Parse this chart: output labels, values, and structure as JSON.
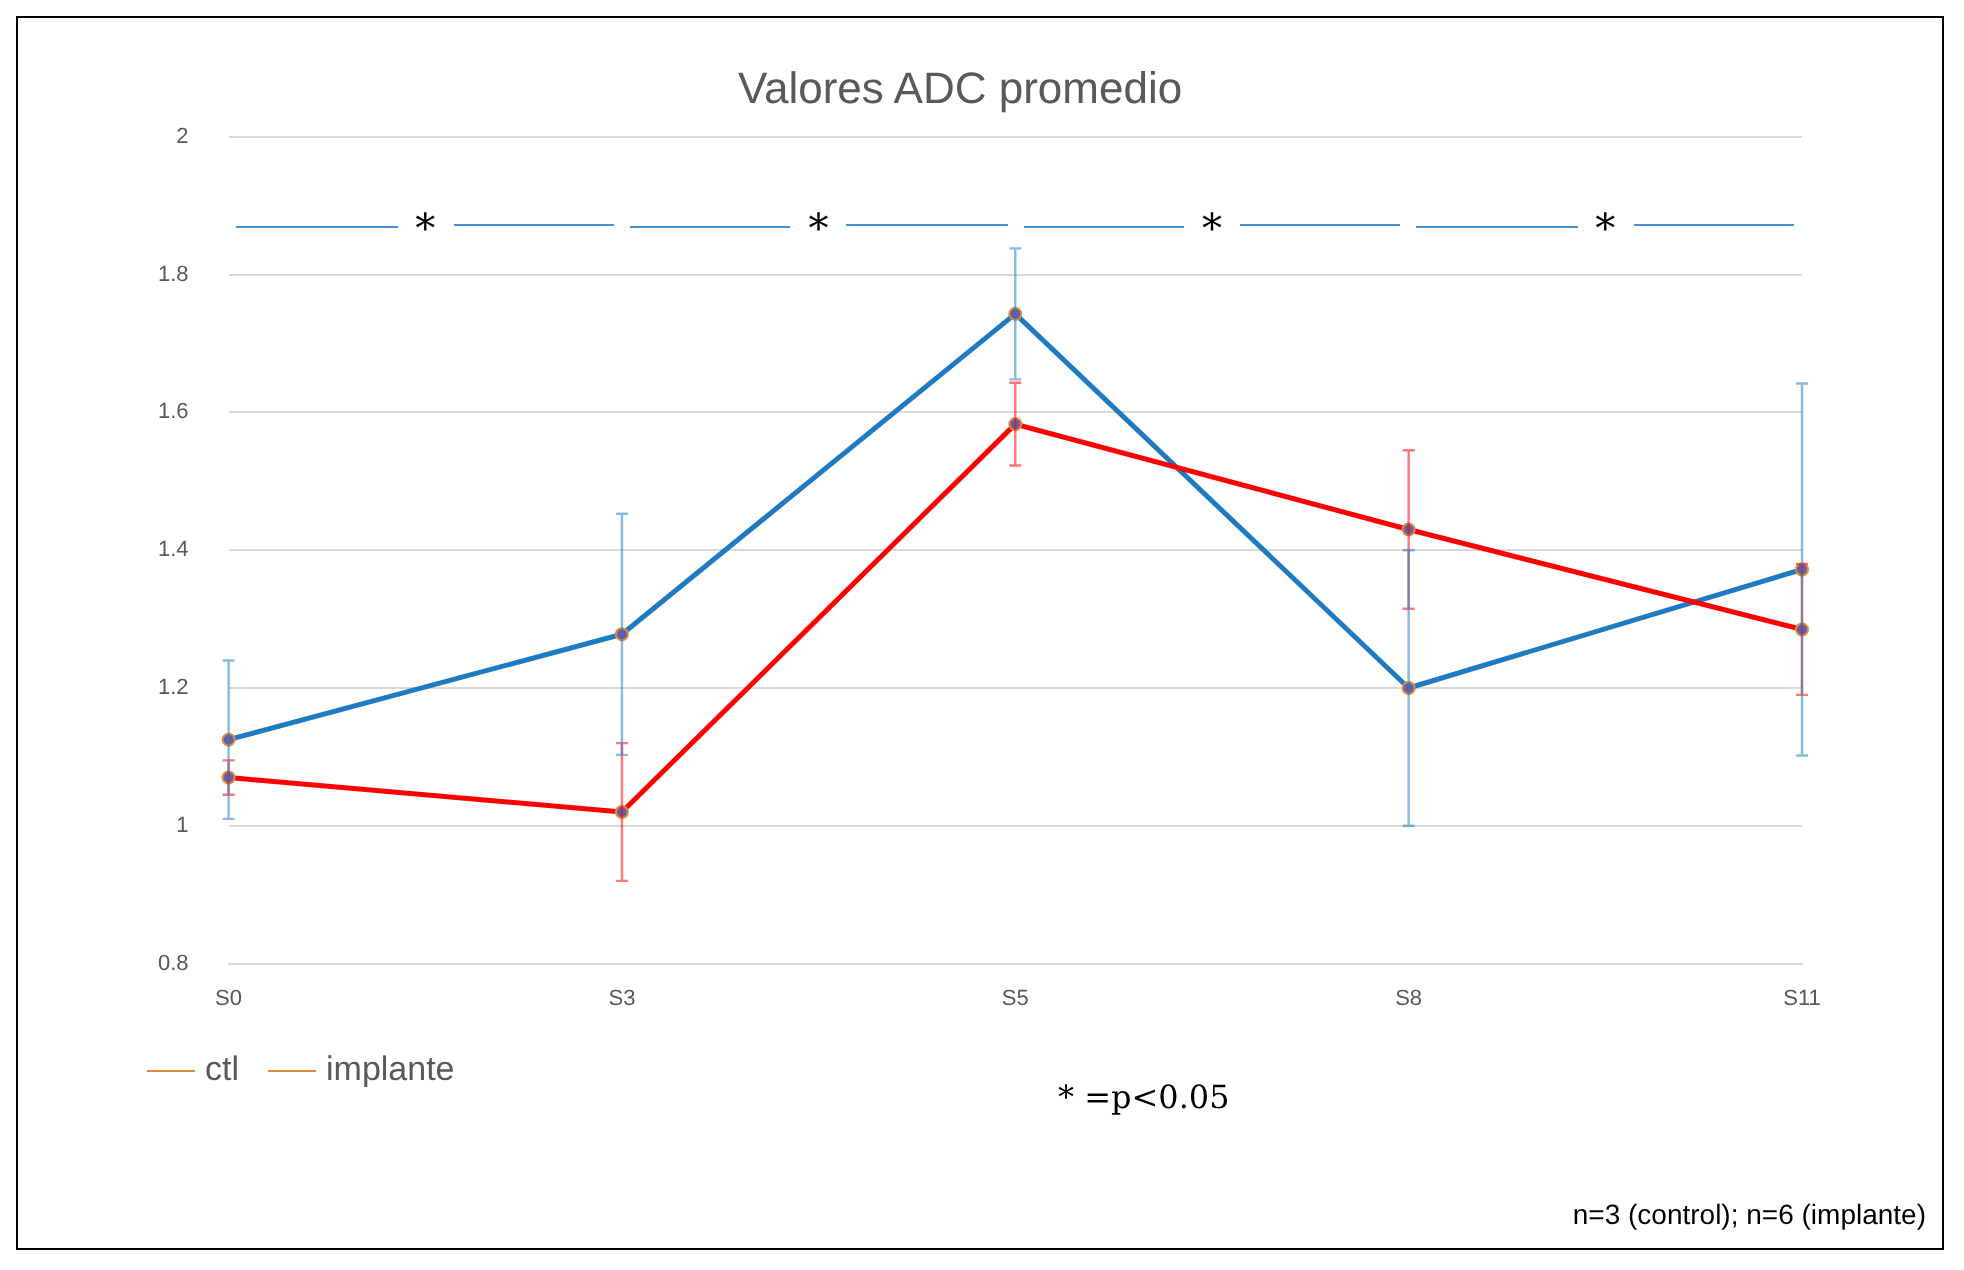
{
  "chart_data": {
    "type": "line",
    "title": "Valores ADC promedio",
    "categories": [
      "S0",
      "S3",
      "S5",
      "S8",
      "S11"
    ],
    "series": [
      {
        "name": "ctl",
        "color": "#ff0000",
        "values": [
          1.07,
          1.02,
          1.583,
          1.43,
          1.285
        ],
        "errors": [
          0.025,
          0.1,
          0.06,
          0.115,
          0.095
        ]
      },
      {
        "name": "implante",
        "color": "#1f7bc1",
        "values": [
          1.125,
          1.278,
          1.743,
          1.2,
          1.372
        ],
        "errors": [
          0.115,
          0.175,
          0.095,
          0.2,
          0.27
        ]
      }
    ],
    "ylim": [
      0.8,
      2
    ],
    "yticks": [
      0.8,
      1,
      1.2,
      1.4,
      1.6,
      1.8,
      2
    ],
    "grid": "y",
    "legend": "bottom left",
    "marker": "circle",
    "line_style": "solid",
    "annotations": [
      "*",
      "*",
      "*",
      "*",
      "* =p<0.05",
      "n=3 (control); n=6 (implante)"
    ]
  }
}
